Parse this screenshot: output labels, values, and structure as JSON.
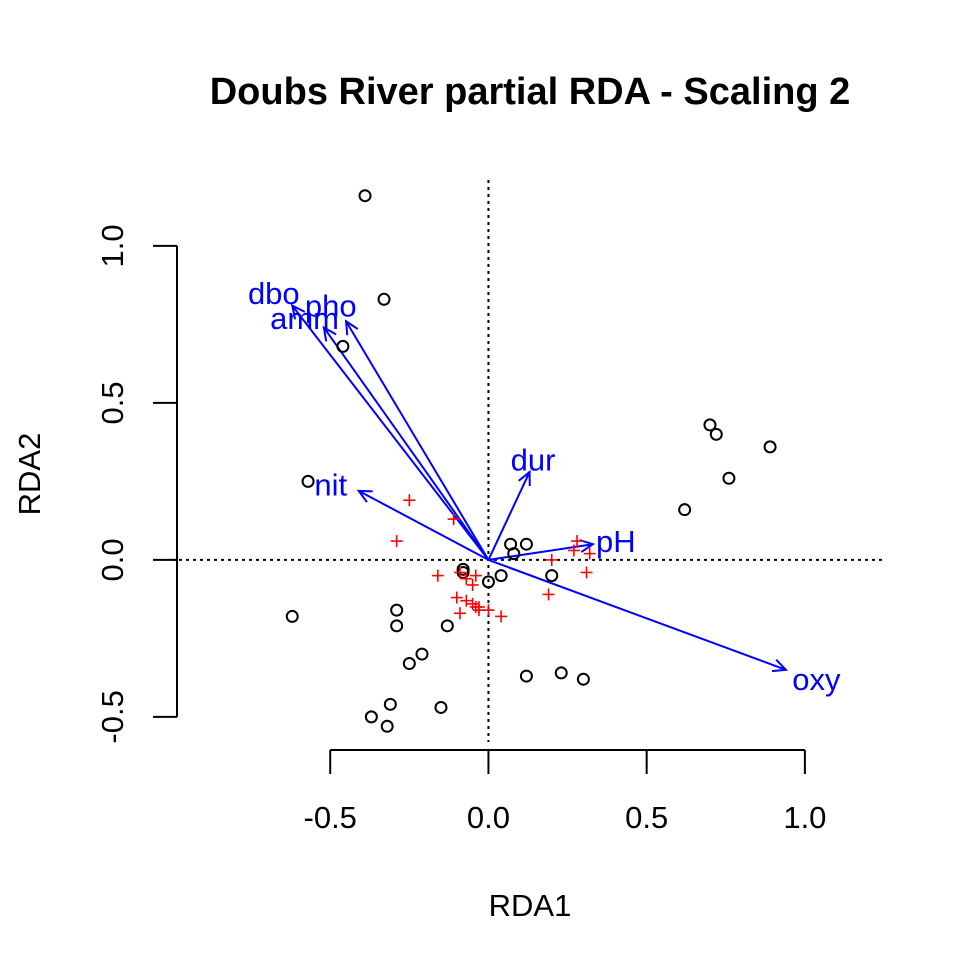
{
  "chart_data": {
    "type": "scatter",
    "title": "Doubs River partial RDA - Scaling 2",
    "xlabel": "RDA1",
    "ylabel": "RDA2",
    "xlim": [
      -1.0,
      1.25
    ],
    "ylim": [
      -0.58,
      1.21
    ],
    "x_ticks": [
      "-0.5",
      "0.0",
      "0.5",
      "1.0"
    ],
    "y_ticks": [
      "-0.5",
      "0.0",
      "0.5",
      "1.0"
    ],
    "zero_lines": true,
    "series": [
      {
        "marker": "open-circle",
        "color": "#000000",
        "points": [
          [
            -0.39,
            1.16
          ],
          [
            -0.33,
            0.83
          ],
          [
            -0.46,
            0.68
          ],
          [
            -0.57,
            0.25
          ],
          [
            -0.62,
            -0.18
          ],
          [
            -0.29,
            -0.16
          ],
          [
            -0.29,
            -0.21
          ],
          [
            -0.13,
            -0.21
          ],
          [
            -0.21,
            -0.3
          ],
          [
            -0.25,
            -0.33
          ],
          [
            -0.31,
            -0.46
          ],
          [
            -0.37,
            -0.5
          ],
          [
            -0.32,
            -0.53
          ],
          [
            -0.15,
            -0.47
          ],
          [
            -0.08,
            -0.03
          ],
          [
            -0.08,
            -0.04
          ],
          [
            0.07,
            0.05
          ],
          [
            0.12,
            0.05
          ],
          [
            0.08,
            0.02
          ],
          [
            0.04,
            -0.05
          ],
          [
            0.0,
            -0.07
          ],
          [
            0.2,
            -0.05
          ],
          [
            0.12,
            -0.37
          ],
          [
            0.23,
            -0.36
          ],
          [
            0.3,
            -0.38
          ],
          [
            0.7,
            0.43
          ],
          [
            0.72,
            0.4
          ],
          [
            0.76,
            0.26
          ],
          [
            0.89,
            0.36
          ],
          [
            0.62,
            0.16
          ]
        ]
      },
      {
        "marker": "plus",
        "color": "#ff0000",
        "points": [
          [
            -0.25,
            0.19
          ],
          [
            -0.11,
            0.13
          ],
          [
            -0.29,
            0.06
          ],
          [
            -0.16,
            -0.05
          ],
          [
            -0.09,
            -0.04
          ],
          [
            -0.07,
            -0.06
          ],
          [
            -0.05,
            -0.08
          ],
          [
            -0.04,
            -0.05
          ],
          [
            -0.1,
            -0.12
          ],
          [
            -0.07,
            -0.13
          ],
          [
            -0.05,
            -0.14
          ],
          [
            -0.04,
            -0.15
          ],
          [
            -0.03,
            -0.15
          ],
          [
            -0.09,
            -0.17
          ],
          [
            -0.03,
            -0.16
          ],
          [
            0.0,
            -0.16
          ],
          [
            0.04,
            -0.18
          ],
          [
            0.28,
            0.06
          ],
          [
            0.32,
            0.02
          ],
          [
            0.27,
            0.03
          ],
          [
            0.2,
            0.0
          ],
          [
            0.31,
            -0.04
          ],
          [
            0.19,
            -0.11
          ]
        ]
      }
    ],
    "arrows": [
      {
        "label": "dbo",
        "x": -0.62,
        "y": 0.81,
        "label_x": -0.76,
        "label_y": 0.85
      },
      {
        "label": "amm",
        "x": -0.52,
        "y": 0.74,
        "label_x": -0.69,
        "label_y": 0.77
      },
      {
        "label": "pho",
        "x": -0.45,
        "y": 0.76,
        "label_x": -0.58,
        "label_y": 0.81
      },
      {
        "label": "nit",
        "x": -0.41,
        "y": 0.22,
        "label_x": -0.55,
        "label_y": 0.24
      },
      {
        "label": "dur",
        "x": 0.13,
        "y": 0.28,
        "label_x": 0.07,
        "label_y": 0.32
      },
      {
        "label": "pH",
        "x": 0.33,
        "y": 0.05,
        "label_x": 0.34,
        "label_y": 0.06
      },
      {
        "label": "oxy",
        "x": 0.94,
        "y": -0.35,
        "label_x": 0.96,
        "label_y": -0.38
      }
    ]
  }
}
